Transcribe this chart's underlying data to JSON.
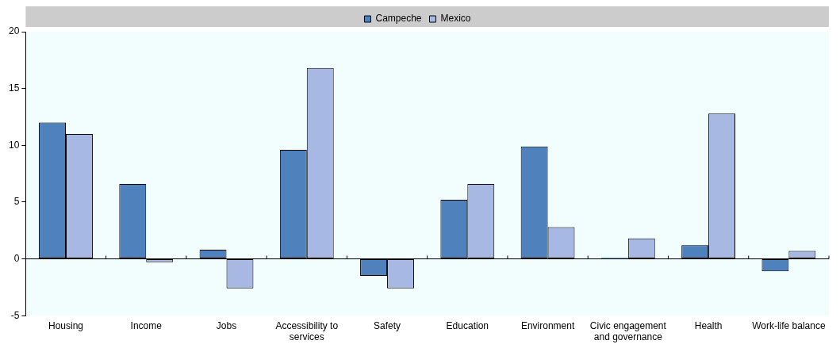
{
  "chart_data": {
    "type": "bar",
    "categories": [
      "Housing",
      "Income",
      "Jobs",
      "Accessibility to services",
      "Safety",
      "Education",
      "Environment",
      "Civic engagement and governance",
      "Health",
      "Work-life balance"
    ],
    "series": [
      {
        "name": "Campeche",
        "color": "#4f81bd",
        "values": [
          12.0,
          6.6,
          0.8,
          9.6,
          -1.5,
          5.2,
          9.9,
          0.1,
          1.2,
          -1.1
        ]
      },
      {
        "name": "Mexico",
        "color": "#a7b8e2",
        "values": [
          11.0,
          -0.3,
          -2.6,
          16.8,
          -2.6,
          6.6,
          2.8,
          1.8,
          12.8,
          0.7
        ]
      }
    ],
    "ylim": [
      -5,
      20
    ],
    "yticks": [
      -5,
      0,
      5,
      10,
      15,
      20
    ],
    "legend": "top"
  }
}
